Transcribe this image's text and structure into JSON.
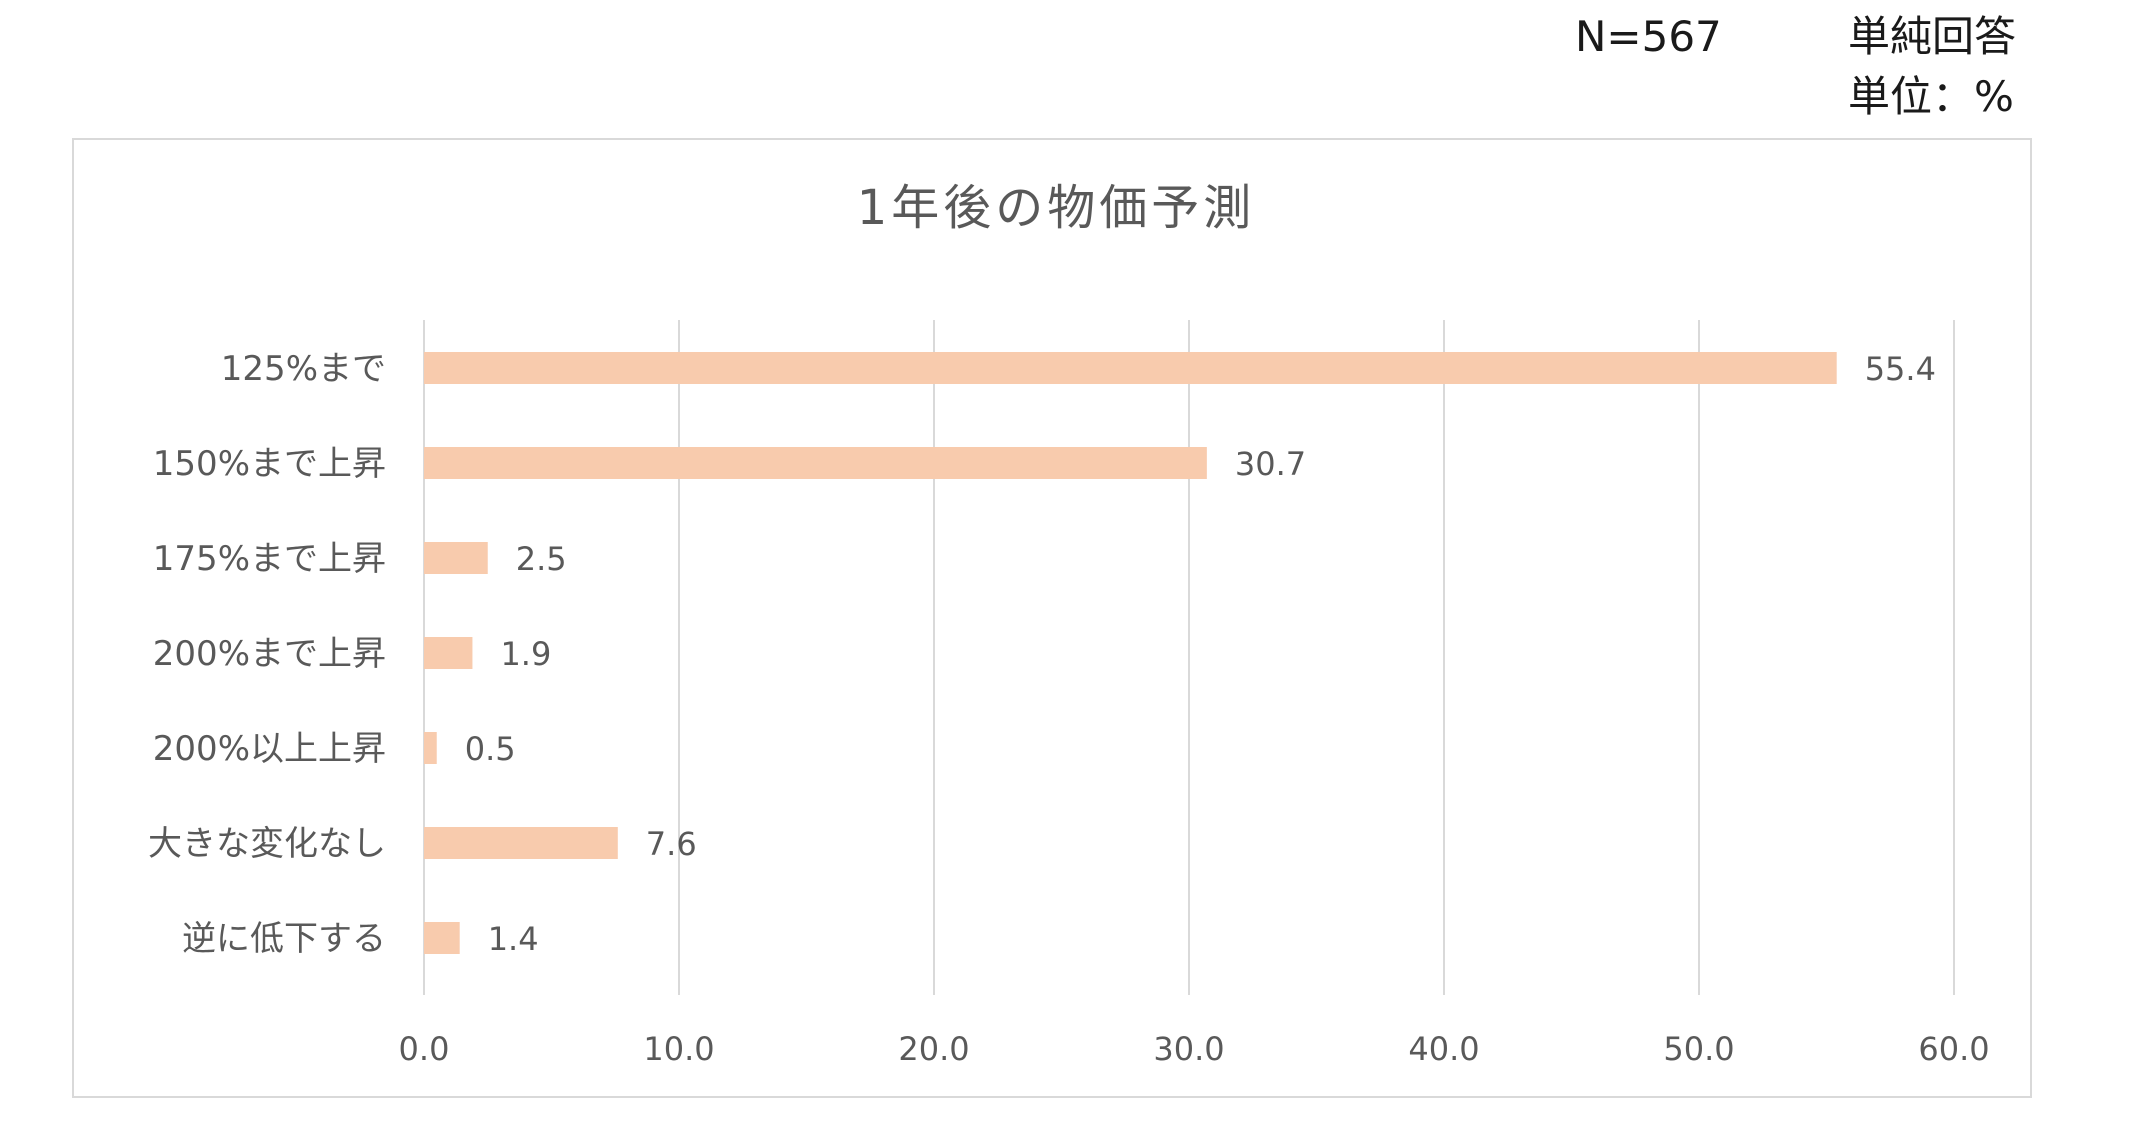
{
  "header": {
    "sample_size": "N=567",
    "answer_type": "単純回答",
    "unit": "単位：%"
  },
  "colors": {
    "bar": "#f8cbad",
    "grid": "#d9d9d9",
    "text": "#595959"
  },
  "chart_data": {
    "type": "bar",
    "orientation": "horizontal",
    "title": "1年後の物価予測",
    "categories": [
      "125%まで",
      "150%まで上昇",
      "175%まで上昇",
      "200%まで上昇",
      "200%以上上昇",
      "大きな変化なし",
      "逆に低下する"
    ],
    "values": [
      55.4,
      30.7,
      2.5,
      1.9,
      0.5,
      7.6,
      1.4
    ],
    "value_labels": [
      "55.4",
      "30.7",
      "2.5",
      "1.9",
      "0.5",
      "7.6",
      "1.4"
    ],
    "xlim": [
      0,
      60
    ],
    "xticks": [
      "0.0",
      "10.0",
      "20.0",
      "30.0",
      "40.0",
      "50.0",
      "60.0"
    ],
    "xtick_values": [
      0,
      10,
      20,
      30,
      40,
      50,
      60
    ],
    "grid": "vertical",
    "legend": "none"
  }
}
